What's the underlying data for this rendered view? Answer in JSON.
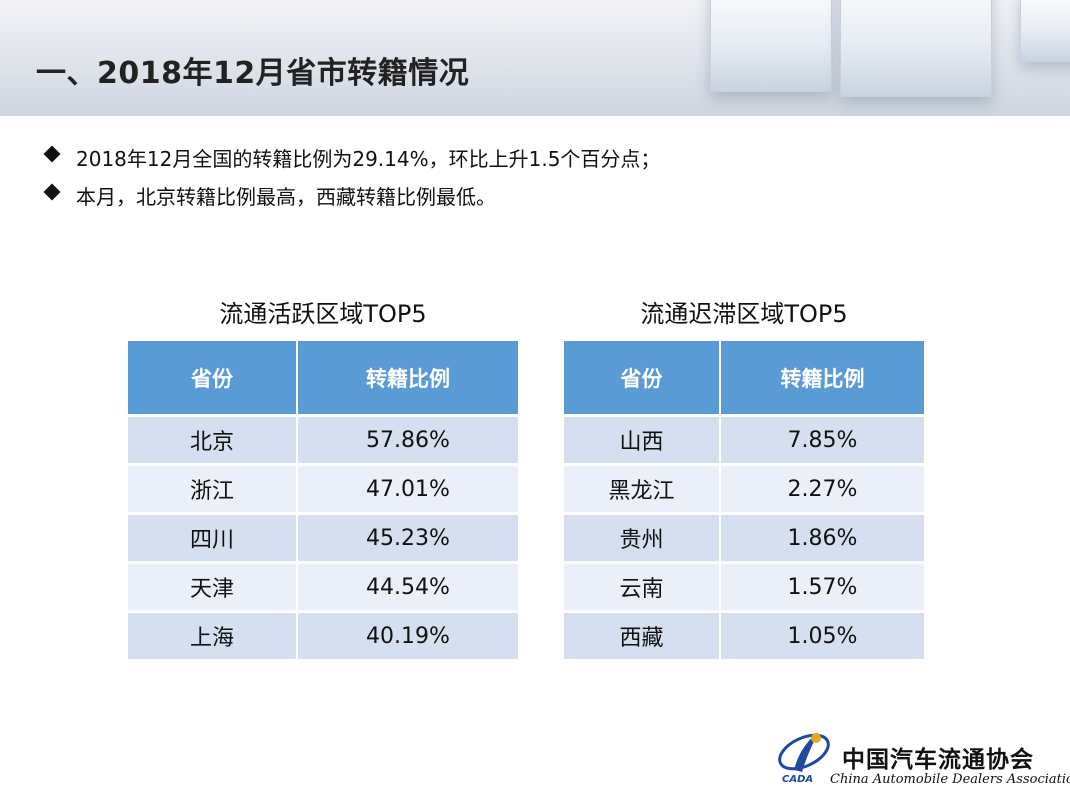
{
  "header": {
    "title": "一、2018年12月省市转籍情况"
  },
  "bullets": [
    "2018年12月全国的转籍比例为29.14%，环比上升1.5个百分点；",
    "本月，北京转籍比例最高，西藏转籍比例最低。"
  ],
  "active_table": {
    "title": "流通活跃区域TOP5",
    "headers": [
      "省份",
      "转籍比例"
    ],
    "rows": [
      [
        "北京",
        "57.86%"
      ],
      [
        "浙江",
        "47.01%"
      ],
      [
        "四川",
        "45.23%"
      ],
      [
        "天津",
        "44.54%"
      ],
      [
        "上海",
        "40.19%"
      ]
    ]
  },
  "slow_table": {
    "title": "流通迟滞区域TOP5",
    "headers": [
      "省份",
      "转籍比例"
    ],
    "rows": [
      [
        "山西",
        "7.85%"
      ],
      [
        "黑龙江",
        "2.27%"
      ],
      [
        "贵州",
        "1.86%"
      ],
      [
        "云南",
        "1.57%"
      ],
      [
        "西藏",
        "1.05%"
      ]
    ]
  },
  "logo": {
    "cn": "中国汽车流通协会",
    "en": "China Automobile Dealers Association",
    "abbr": "CADA"
  },
  "colors": {
    "table_header": "#5b9bd5",
    "row_odd": "#d5dfef",
    "row_even": "#ebf0f8"
  }
}
